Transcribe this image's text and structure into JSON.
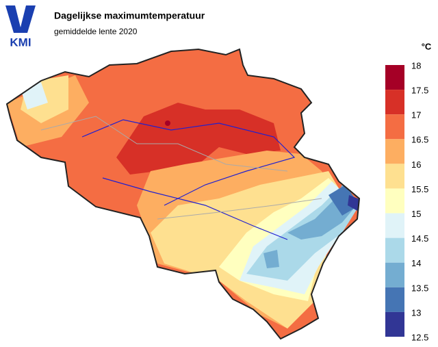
{
  "logo": "KMI",
  "title": "Dagelijkse maximumtemperatuur",
  "subtitle": "gemiddelde lente 2020",
  "legend": {
    "unit": "°C",
    "ticks": [
      18,
      17.5,
      17,
      16.5,
      16,
      15.5,
      15,
      14.5,
      14,
      13.5,
      13,
      12.5
    ],
    "colors": [
      "#a50026",
      "#d73027",
      "#f46d43",
      "#fdae61",
      "#fee090",
      "#ffffbf",
      "#e0f3f8",
      "#abd9e9",
      "#74add1",
      "#4575b4",
      "#313695"
    ]
  }
}
